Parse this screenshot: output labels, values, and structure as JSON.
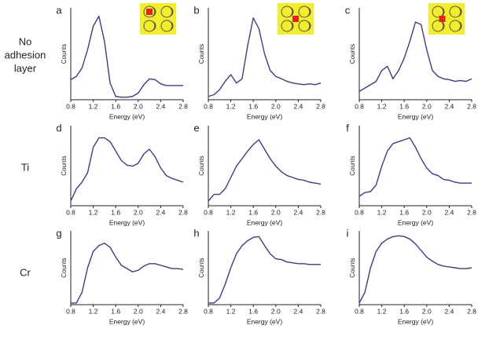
{
  "row_labels": [
    "No adhesion layer",
    "Ti",
    "Cr"
  ],
  "chart_data": [
    {
      "type": "line",
      "panel": "a",
      "xlabel": "Energy (eV)",
      "ylabel": "Counts",
      "color": "#3b3b95",
      "x": [
        0.8,
        0.9,
        1.0,
        1.1,
        1.2,
        1.3,
        1.4,
        1.5,
        1.6,
        1.7,
        1.8,
        1.9,
        2.0,
        2.1,
        2.2,
        2.3,
        2.4,
        2.5,
        2.6,
        2.7,
        2.8
      ],
      "values": [
        0.24,
        0.28,
        0.38,
        0.6,
        0.88,
        1.0,
        0.7,
        0.2,
        0.04,
        0.03,
        0.03,
        0.04,
        0.08,
        0.18,
        0.25,
        0.24,
        0.19,
        0.17,
        0.17,
        0.17,
        0.17
      ],
      "xlim": [
        0.8,
        2.8
      ],
      "ylim": [
        0,
        1.1
      ],
      "xticks": [
        0.8,
        1.2,
        1.6,
        {
          "value": 2,
          "label": "2.0"
        },
        2.4,
        2.8
      ]
    },
    {
      "type": "line",
      "panel": "b",
      "xlabel": "Energy (eV)",
      "ylabel": "Counts",
      "color": "#3b3b95",
      "x": [
        0.8,
        0.9,
        1.0,
        1.1,
        1.2,
        1.3,
        1.4,
        1.5,
        1.6,
        1.7,
        1.8,
        1.9,
        2.0,
        2.1,
        2.2,
        2.3,
        2.4,
        2.5,
        2.6,
        2.7,
        2.8
      ],
      "values": [
        0.04,
        0.06,
        0.12,
        0.22,
        0.3,
        0.2,
        0.25,
        0.65,
        0.98,
        0.85,
        0.55,
        0.35,
        0.28,
        0.25,
        0.22,
        0.2,
        0.19,
        0.18,
        0.19,
        0.18,
        0.2
      ],
      "xlim": [
        0.8,
        2.8
      ],
      "ylim": [
        0,
        1.1
      ],
      "xticks": [
        0.8,
        1.2,
        1.6,
        {
          "value": 2,
          "label": "2.0"
        },
        2.4,
        2.8
      ]
    },
    {
      "type": "line",
      "panel": "c",
      "xlabel": "Energy (eV)",
      "ylabel": "Counts",
      "color": "#3b3b95",
      "x": [
        0.8,
        0.9,
        1.0,
        1.1,
        1.2,
        1.3,
        1.4,
        1.5,
        1.6,
        1.7,
        1.8,
        1.9,
        2.0,
        2.1,
        2.2,
        2.3,
        2.4,
        2.5,
        2.6,
        2.7,
        2.8
      ],
      "values": [
        0.1,
        0.14,
        0.18,
        0.22,
        0.35,
        0.4,
        0.25,
        0.35,
        0.5,
        0.7,
        0.93,
        0.9,
        0.6,
        0.35,
        0.28,
        0.25,
        0.24,
        0.22,
        0.23,
        0.22,
        0.25
      ],
      "xlim": [
        0.8,
        2.8
      ],
      "ylim": [
        0,
        1.1
      ],
      "xticks": [
        0.8,
        1.2,
        1.6,
        {
          "value": 2,
          "label": "2.0"
        },
        2.4,
        2.8
      ]
    },
    {
      "type": "line",
      "panel": "d",
      "xlabel": "Energy (eV)",
      "ylabel": "Counts",
      "color": "#3b3b95",
      "x": [
        0.8,
        0.9,
        1.0,
        1.1,
        1.2,
        1.3,
        1.4,
        1.5,
        1.6,
        1.7,
        1.8,
        1.9,
        2.0,
        2.1,
        2.2,
        2.3,
        2.4,
        2.5,
        2.6,
        2.7,
        2.8
      ],
      "values": [
        0.05,
        0.18,
        0.25,
        0.35,
        0.62,
        0.72,
        0.72,
        0.68,
        0.58,
        0.48,
        0.43,
        0.42,
        0.45,
        0.55,
        0.6,
        0.52,
        0.4,
        0.32,
        0.29,
        0.27,
        0.25
      ],
      "xlim": [
        0.8,
        2.8
      ],
      "ylim": [
        0,
        0.85
      ],
      "xticks": [
        0.8,
        1.2,
        1.6,
        {
          "value": 2,
          "label": "2.0"
        },
        2.4,
        2.8
      ]
    },
    {
      "type": "line",
      "panel": "e",
      "xlabel": "Energy (eV)",
      "ylabel": "Counts",
      "color": "#3b3b95",
      "x": [
        0.8,
        0.9,
        1.0,
        1.1,
        1.2,
        1.3,
        1.4,
        1.5,
        1.6,
        1.7,
        1.8,
        1.9,
        2.0,
        2.1,
        2.2,
        2.3,
        2.4,
        2.5,
        2.6,
        2.7,
        2.8
      ],
      "values": [
        0.05,
        0.12,
        0.12,
        0.18,
        0.3,
        0.42,
        0.5,
        0.58,
        0.65,
        0.7,
        0.6,
        0.5,
        0.42,
        0.36,
        0.32,
        0.3,
        0.28,
        0.27,
        0.25,
        0.24,
        0.23
      ],
      "xlim": [
        0.8,
        2.8
      ],
      "ylim": [
        0,
        0.85
      ],
      "xticks": [
        0.8,
        1.2,
        1.6,
        {
          "value": 2,
          "label": "2.0"
        },
        2.4,
        2.8
      ]
    },
    {
      "type": "line",
      "panel": "f",
      "xlabel": "Energy (eV)",
      "ylabel": "Counts",
      "color": "#3b3b95",
      "x": [
        0.8,
        0.9,
        1.0,
        1.1,
        1.2,
        1.3,
        1.4,
        1.5,
        1.6,
        1.7,
        1.8,
        1.9,
        2.0,
        2.1,
        2.2,
        2.3,
        2.4,
        2.5,
        2.6,
        2.7,
        2.8
      ],
      "values": [
        0.1,
        0.14,
        0.15,
        0.22,
        0.42,
        0.58,
        0.66,
        0.68,
        0.7,
        0.72,
        0.62,
        0.5,
        0.4,
        0.34,
        0.32,
        0.28,
        0.27,
        0.25,
        0.24,
        0.24,
        0.24
      ],
      "xlim": [
        0.8,
        2.8
      ],
      "ylim": [
        0,
        0.85
      ],
      "xticks": [
        0.8,
        1.2,
        1.6,
        {
          "value": 2,
          "label": "2.0"
        },
        2.4,
        2.8
      ]
    },
    {
      "type": "line",
      "panel": "g",
      "xlabel": "Energy (eV)",
      "ylabel": "Counts",
      "color": "#3b3b95",
      "x": [
        0.8,
        0.9,
        1.0,
        1.1,
        1.2,
        1.3,
        1.4,
        1.5,
        1.6,
        1.7,
        1.8,
        1.9,
        2.0,
        2.1,
        2.2,
        2.3,
        2.4,
        2.5,
        2.6,
        2.7,
        2.8
      ],
      "values": [
        0.02,
        0.02,
        0.15,
        0.45,
        0.65,
        0.72,
        0.75,
        0.7,
        0.58,
        0.48,
        0.44,
        0.4,
        0.42,
        0.47,
        0.5,
        0.5,
        0.48,
        0.46,
        0.44,
        0.44,
        0.43
      ],
      "xlim": [
        0.8,
        2.8
      ],
      "ylim": [
        0,
        0.9
      ],
      "xticks": [
        0.8,
        1.2,
        1.6,
        {
          "value": 2,
          "label": "2.0"
        },
        2.4,
        2.8
      ]
    },
    {
      "type": "line",
      "panel": "h",
      "xlabel": "Energy (eV)",
      "ylabel": "Counts",
      "color": "#3b3b95",
      "x": [
        0.8,
        0.9,
        1.0,
        1.1,
        1.2,
        1.3,
        1.4,
        1.5,
        1.6,
        1.7,
        1.8,
        1.9,
        2.0,
        2.1,
        2.2,
        2.3,
        2.4,
        2.5,
        2.6,
        2.7,
        2.8
      ],
      "values": [
        0.02,
        0.02,
        0.08,
        0.25,
        0.45,
        0.62,
        0.72,
        0.78,
        0.82,
        0.83,
        0.72,
        0.62,
        0.56,
        0.55,
        0.52,
        0.51,
        0.5,
        0.5,
        0.49,
        0.49,
        0.49
      ],
      "xlim": [
        0.8,
        2.8
      ],
      "ylim": [
        0,
        0.9
      ],
      "xticks": [
        0.8,
        1.2,
        1.6,
        {
          "value": 2,
          "label": "2.0"
        },
        2.4,
        2.8
      ]
    },
    {
      "type": "line",
      "panel": "i",
      "xlabel": "Energy (eV)",
      "ylabel": "Counts",
      "color": "#3b3b95",
      "x": [
        0.8,
        0.9,
        1.0,
        1.1,
        1.2,
        1.3,
        1.4,
        1.5,
        1.6,
        1.7,
        1.8,
        1.9,
        2.0,
        2.1,
        2.2,
        2.3,
        2.4,
        2.5,
        2.6,
        2.7,
        2.8
      ],
      "values": [
        0.02,
        0.15,
        0.45,
        0.65,
        0.75,
        0.8,
        0.83,
        0.84,
        0.83,
        0.8,
        0.74,
        0.66,
        0.58,
        0.53,
        0.49,
        0.47,
        0.46,
        0.45,
        0.44,
        0.44,
        0.45
      ],
      "xlim": [
        0.8,
        2.8
      ],
      "ylim": [
        0,
        0.9
      ],
      "xticks": [
        0.8,
        1.2,
        1.6,
        {
          "value": 2,
          "label": "2.0"
        },
        2.4,
        2.8
      ]
    }
  ]
}
